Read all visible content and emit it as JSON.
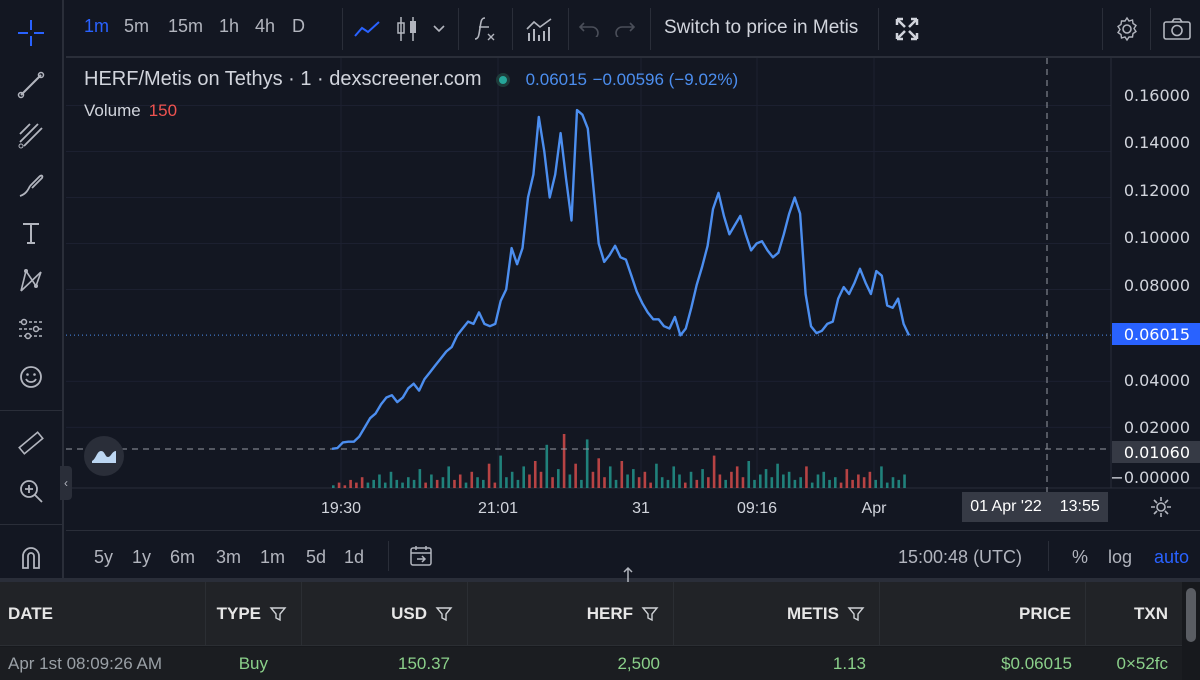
{
  "toolbar": {
    "timeframes": [
      "1m",
      "5m",
      "15m",
      "1h",
      "4h",
      "D"
    ],
    "active_timeframe": "1m",
    "switch_label": "Switch to price in Metis"
  },
  "left_toolbar": {
    "tools": [
      "crosshair-icon",
      "trend-line-icon",
      "fib-icon",
      "brush-icon",
      "text-icon",
      "pattern-icon",
      "forecast-icon",
      "emoji-icon",
      "ruler-icon",
      "zoom-in-icon",
      "magnet-icon"
    ]
  },
  "legend": {
    "title": "HERF/Metis on Tethys · 1 · dexscreener.com",
    "price": "0.06015",
    "change": "−0.00596 (−9.02%)",
    "volume_label": "Volume",
    "volume_value": "150"
  },
  "chart_data": {
    "type": "line",
    "series": [
      {
        "values": [
          0.0107,
          0.011,
          0.0135,
          0.0138,
          0.0138,
          0.016,
          0.02,
          0.024,
          0.026,
          0.03,
          0.033,
          0.034,
          0.031,
          0.033,
          0.037,
          0.039,
          0.036,
          0.041,
          0.044,
          0.047,
          0.05,
          0.053,
          0.055,
          0.06,
          0.063,
          0.066,
          0.065,
          0.07,
          0.065,
          0.064,
          0.065,
          0.075,
          0.08,
          0.098,
          0.091,
          0.098,
          0.12,
          0.13,
          0.155,
          0.14,
          0.12,
          0.13,
          0.148,
          0.128,
          0.11,
          0.158,
          0.156,
          0.15,
          0.125,
          0.1,
          0.092,
          0.095,
          0.099,
          0.094,
          0.093,
          0.086,
          0.079,
          0.074,
          0.07,
          0.067,
          0.067,
          0.064,
          0.063,
          0.068,
          0.06,
          0.063,
          0.072,
          0.082,
          0.09,
          0.099,
          0.115,
          0.122,
          0.112,
          0.104,
          0.108,
          0.112,
          0.104,
          0.097,
          0.1,
          0.101,
          0.097,
          0.094,
          0.096,
          0.104,
          0.113,
          0.12,
          0.113,
          0.078,
          0.064,
          0.061,
          0.062,
          0.065,
          0.066,
          0.076,
          0.081,
          0.078,
          0.083,
          0.089,
          0.083,
          0.078,
          0.088,
          0.086,
          0.073,
          0.072,
          0.076,
          0.065,
          0.06
        ]
      }
    ],
    "x_tick_labels": [
      "19:30",
      "21:01",
      "31",
      "09:16",
      "Apr"
    ],
    "y_tick_labels": [
      "0.16000",
      "0.14000",
      "0.12000",
      "0.10000",
      "0.08000",
      "0.06015",
      "0.04000",
      "0.02000",
      "0.01060",
      "−0.00000"
    ],
    "ylim": [
      -0.002,
      0.165
    ],
    "last_price": 0.06015,
    "crosshair_price": "0.01060",
    "crosshair_time": [
      "01 Apr '22",
      "13:55"
    ],
    "line_color": "#4c8eef",
    "volume": {
      "bars": [
        1,
        2,
        1,
        3,
        2,
        4,
        2,
        3,
        5,
        2,
        6,
        3,
        2,
        4,
        3,
        7,
        2,
        5,
        3,
        4,
        8,
        3,
        5,
        2,
        6,
        4,
        3,
        9,
        2,
        12,
        4,
        6,
        3,
        8,
        5,
        10,
        6,
        16,
        4,
        7,
        20,
        5,
        9,
        3,
        18,
        6,
        11,
        4,
        8,
        3,
        10,
        5,
        7,
        4,
        6,
        2,
        9,
        4,
        3,
        8,
        5,
        2,
        6,
        3,
        7,
        4,
        12,
        5,
        3,
        6,
        8,
        4,
        10,
        3,
        5,
        7,
        4,
        9,
        5,
        6,
        3,
        4,
        8,
        2,
        5,
        6,
        3,
        4,
        2,
        7,
        3,
        5,
        4,
        6,
        3,
        8,
        2,
        4,
        3,
        5
      ],
      "ymax": 40
    }
  },
  "range_bar": {
    "ranges": [
      "5y",
      "1y",
      "6m",
      "3m",
      "1m",
      "5d",
      "1d"
    ],
    "clock": "15:00:48 (UTC)",
    "percent": "%",
    "log": "log",
    "auto": "auto"
  },
  "table": {
    "headers": [
      "DATE",
      "TYPE",
      "USD",
      "HERF",
      "METIS",
      "PRICE",
      "TXN"
    ],
    "row": {
      "date": "Apr 1st 08:09:26 AM",
      "type": "Buy",
      "usd": "150.37",
      "herf": "2,500",
      "metis": "1.13",
      "price": "$0.06015",
      "txn": "0×52fc"
    }
  },
  "colors": {
    "background": "#131722",
    "accent": "#2962ff",
    "up": "#26a69a",
    "down": "#ef5350",
    "buy_text": "#8bd08a"
  }
}
